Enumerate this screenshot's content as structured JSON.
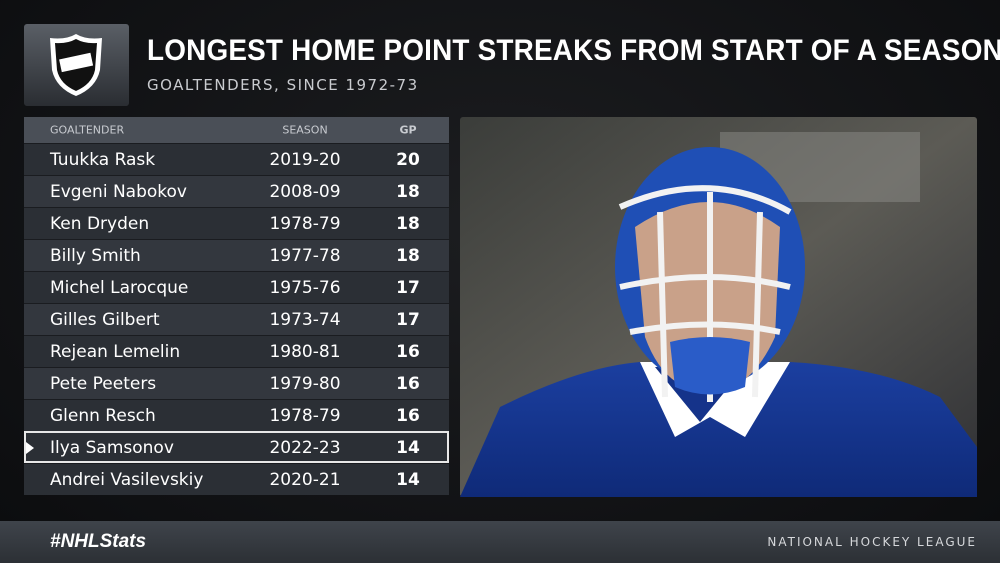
{
  "header": {
    "title": "LONGEST HOME POINT STREAKS FROM START OF A SEASON",
    "subtitle": "GOALTENDERS, SINCE 1972-73"
  },
  "table": {
    "columns": [
      "GOALTENDER",
      "SEASON",
      "GP"
    ],
    "rows": [
      [
        "Tuukka Rask",
        "2019-20",
        "20"
      ],
      [
        "Evgeni Nabokov",
        "2008-09",
        "18"
      ],
      [
        "Ken Dryden",
        "1978-79",
        "18"
      ],
      [
        "Billy Smith",
        "1977-78",
        "18"
      ],
      [
        "Michel Larocque",
        "1975-76",
        "17"
      ],
      [
        "Gilles Gilbert",
        "1973-74",
        "17"
      ],
      [
        "Rejean Lemelin",
        "1980-81",
        "16"
      ],
      [
        "Pete Peeters",
        "1979-80",
        "16"
      ],
      [
        "Glenn Resch",
        "1978-79",
        "16"
      ],
      [
        "Ilya Samsonov",
        "2022-23",
        "14"
      ],
      [
        "Andrei Vasilevskiy",
        "2020-21",
        "14"
      ]
    ]
  },
  "footer": {
    "hashtag": "#NHLStats",
    "league": "NATIONAL HOCKEY LEAGUE"
  }
}
